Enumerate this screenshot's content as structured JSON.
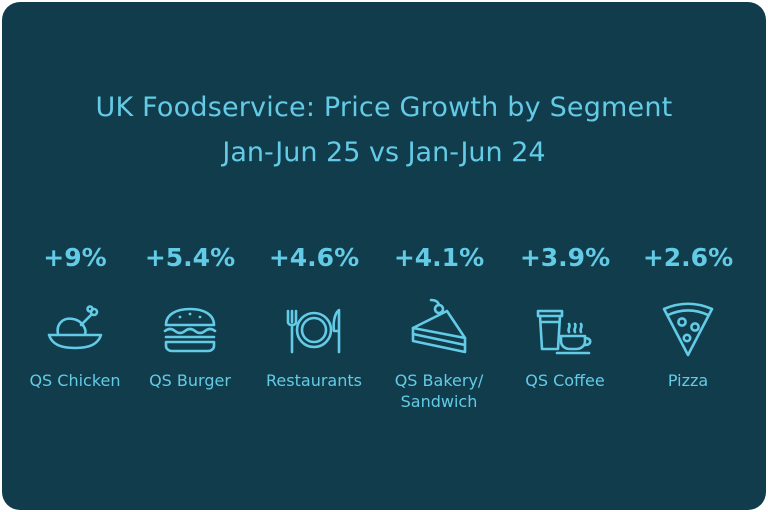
{
  "chart_data": {
    "type": "table",
    "title": "UK Foodservice: Price Growth by Segment",
    "subtitle": "Jan-Jun 25 vs Jan-Jun 24",
    "categories": [
      "QS Chicken",
      "QS Burger",
      "Restaurants",
      "QS Bakery/ Sandwich",
      "QS Coffee",
      "Pizza"
    ],
    "values": [
      9,
      5.4,
      4.6,
      4.1,
      3.9,
      2.6
    ],
    "value_labels": [
      "+9%",
      "+5.4%",
      "+4.6%",
      "+4.1%",
      "+3.9%",
      "+2.6%"
    ],
    "icons": [
      "chicken-icon",
      "burger-icon",
      "plate-cutlery-icon",
      "cake-slice-icon",
      "coffee-icon",
      "pizza-icon"
    ]
  },
  "segments": [
    {
      "label": "QS Chicken",
      "value": "+9%",
      "icon": "chicken-icon"
    },
    {
      "label": "QS Burger",
      "value": "+5.4%",
      "icon": "burger-icon"
    },
    {
      "label": "Restaurants",
      "value": "+4.6%",
      "icon": "plate-cutlery-icon"
    },
    {
      "label_line1": "QS Bakery/",
      "label_line2": "Sandwich",
      "value": "+4.1%",
      "icon": "cake-slice-icon"
    },
    {
      "label": "QS Coffee",
      "value": "+3.9%",
      "icon": "coffee-icon"
    },
    {
      "label": "Pizza",
      "value": "+2.6%",
      "icon": "pizza-icon"
    }
  ],
  "colors": {
    "background": "#113c4c",
    "accent": "#63cbe6"
  }
}
